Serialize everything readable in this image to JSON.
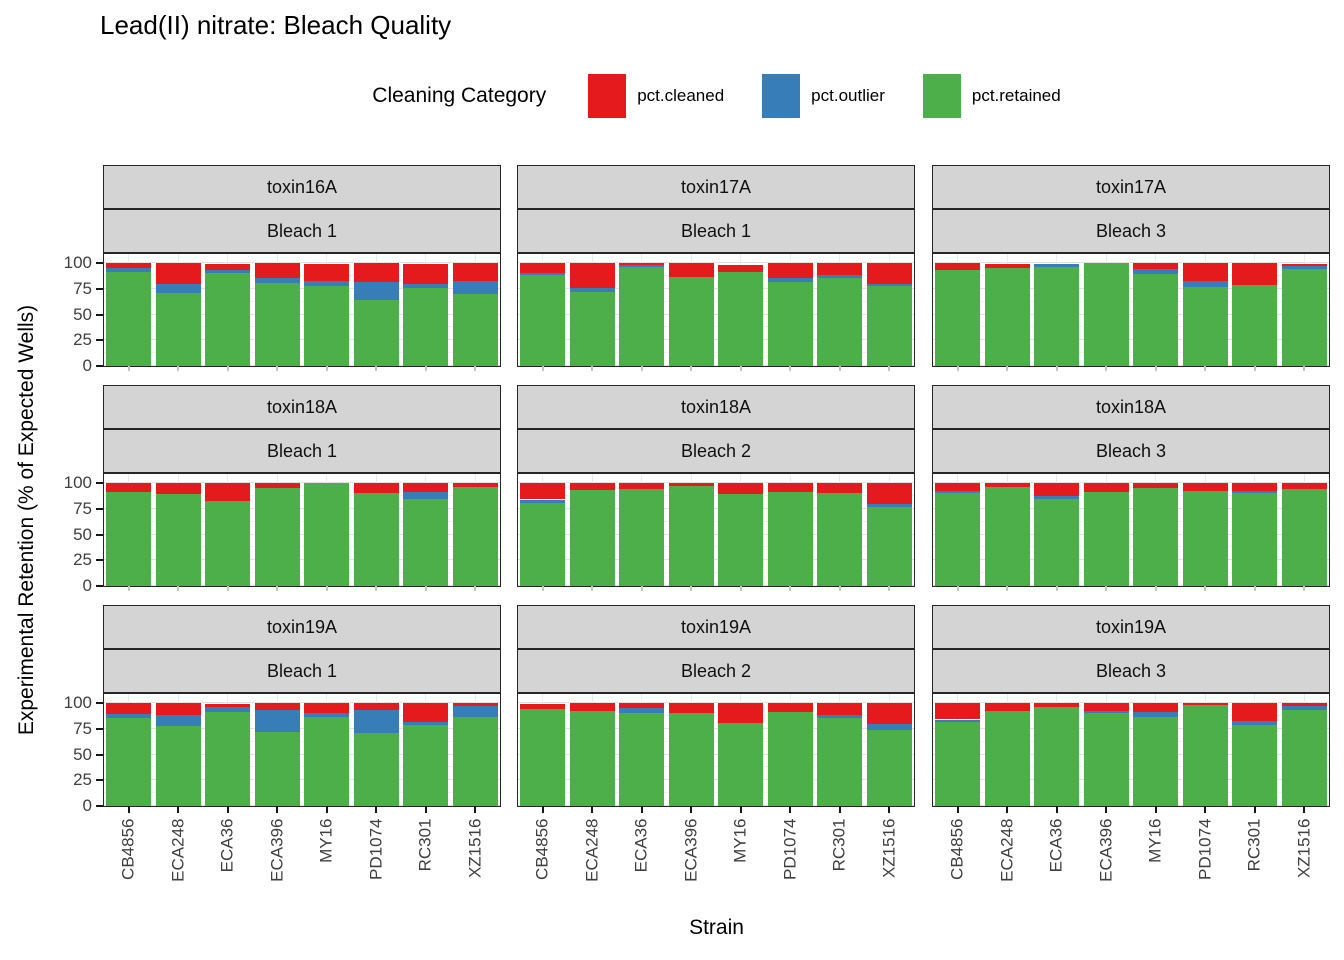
{
  "chart_data": {
    "type": "bar",
    "stacked": true,
    "title": "Lead(II) nitrate: Bleach Quality",
    "xlabel": "Strain",
    "ylabel": "Experimental Retention (% of Expected Wells)",
    "legend": {
      "title": "Cleaning Category",
      "position": "top",
      "entries": [
        {
          "label": "pct.cleaned",
          "color": "#E41A1C"
        },
        {
          "label": "pct.outlier",
          "color": "#377EB8"
        },
        {
          "label": "pct.retained",
          "color": "#4DAF4A"
        }
      ]
    },
    "categories": [
      "CB4856",
      "ECA248",
      "ECA36",
      "ECA396",
      "MY16",
      "PD1074",
      "RC301",
      "XZ1516"
    ],
    "y_ticks": [
      0,
      25,
      50,
      75,
      100
    ],
    "y_minor_ticks": [
      12.5,
      37.5,
      62.5,
      87.5
    ],
    "ylim": [
      0,
      105
    ],
    "grid": true,
    "stack_order_bottom_to_top": [
      "pct.retained",
      "pct.outlier",
      "pct.cleaned"
    ],
    "facets": [
      {
        "row": 0,
        "col": 0,
        "strip_top": "toxin16A",
        "strip_bottom": "Bleach 1",
        "series": {
          "pct.retained": [
            91,
            71,
            90,
            81,
            78,
            64,
            76,
            70
          ],
          "pct.outlier": [
            4,
            9,
            3,
            4,
            5,
            18,
            4,
            13
          ],
          "pct.cleaned": [
            5,
            20,
            6,
            15,
            16,
            18,
            19,
            17
          ]
        }
      },
      {
        "row": 0,
        "col": 1,
        "strip_top": "toxin17A",
        "strip_bottom": "Bleach 1",
        "series": {
          "pct.retained": [
            88,
            72,
            96,
            86,
            91,
            82,
            85,
            78
          ],
          "pct.outlier": [
            2,
            4,
            2,
            0,
            0,
            3,
            3,
            2
          ],
          "pct.cleaned": [
            10,
            24,
            2,
            14,
            7,
            15,
            12,
            20
          ]
        }
      },
      {
        "row": 0,
        "col": 2,
        "strip_top": "toxin17A",
        "strip_bottom": "Bleach 3",
        "series": {
          "pct.retained": [
            93,
            95,
            96,
            100,
            89,
            77,
            79,
            94
          ],
          "pct.outlier": [
            0,
            0,
            3,
            0,
            5,
            6,
            0,
            3
          ],
          "pct.cleaned": [
            7,
            4,
            0,
            0,
            6,
            17,
            21,
            2
          ]
        }
      },
      {
        "row": 1,
        "col": 0,
        "strip_top": "toxin18A",
        "strip_bottom": "Bleach 1",
        "series": {
          "pct.retained": [
            91,
            89,
            83,
            95,
            100,
            90,
            84,
            96
          ],
          "pct.outlier": [
            0,
            0,
            0,
            0,
            0,
            0,
            7,
            0
          ],
          "pct.cleaned": [
            9,
            11,
            17,
            5,
            0,
            10,
            9,
            4
          ]
        }
      },
      {
        "row": 1,
        "col": 1,
        "strip_top": "toxin18A",
        "strip_bottom": "Bleach 2",
        "series": {
          "pct.retained": [
            81,
            93,
            94,
            97,
            89,
            91,
            90,
            77
          ],
          "pct.outlier": [
            3,
            0,
            0,
            0,
            0,
            0,
            0,
            3
          ],
          "pct.cleaned": [
            16,
            7,
            6,
            3,
            11,
            9,
            10,
            20
          ]
        }
      },
      {
        "row": 1,
        "col": 2,
        "strip_top": "toxin18A",
        "strip_bottom": "Bleach 3",
        "series": {
          "pct.retained": [
            90,
            96,
            84,
            91,
            95,
            92,
            90,
            94
          ],
          "pct.outlier": [
            2,
            0,
            3,
            0,
            0,
            0,
            2,
            0
          ],
          "pct.cleaned": [
            8,
            4,
            13,
            9,
            5,
            8,
            8,
            6
          ]
        }
      },
      {
        "row": 2,
        "col": 0,
        "strip_top": "toxin19A",
        "strip_bottom": "Bleach 1",
        "series": {
          "pct.retained": [
            85,
            78,
            91,
            72,
            86,
            71,
            79,
            86
          ],
          "pct.outlier": [
            4,
            10,
            5,
            21,
            4,
            22,
            3,
            11
          ],
          "pct.cleaned": [
            11,
            12,
            3,
            7,
            10,
            7,
            18,
            3
          ]
        }
      },
      {
        "row": 2,
        "col": 1,
        "strip_top": "toxin19A",
        "strip_bottom": "Bleach 2",
        "series": {
          "pct.retained": [
            94,
            92,
            90,
            90,
            81,
            91,
            85,
            74
          ],
          "pct.outlier": [
            0,
            0,
            5,
            0,
            0,
            0,
            3,
            6
          ],
          "pct.cleaned": [
            5,
            8,
            5,
            10,
            19,
            9,
            12,
            20
          ]
        }
      },
      {
        "row": 2,
        "col": 2,
        "strip_top": "toxin19A",
        "strip_bottom": "Bleach 3",
        "series": {
          "pct.retained": [
            82,
            92,
            96,
            90,
            86,
            98,
            79,
            93
          ],
          "pct.outlier": [
            2,
            0,
            0,
            2,
            5,
            0,
            4,
            4
          ],
          "pct.cleaned": [
            16,
            8,
            4,
            8,
            9,
            2,
            17,
            3
          ]
        }
      }
    ]
  }
}
